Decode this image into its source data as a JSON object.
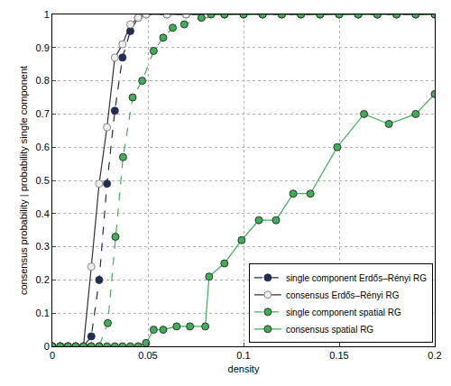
{
  "chart_data": {
    "type": "line",
    "x_label": "density",
    "y_label": "consensus probability | probability single component",
    "xlim": [
      0,
      0.2
    ],
    "xticks": [
      0,
      0.05,
      0.1,
      0.15,
      0.2
    ],
    "ylim": [
      0,
      1
    ],
    "yticks": [
      0,
      0.1,
      0.2,
      0.3,
      0.4,
      0.5,
      0.6,
      0.7,
      0.8,
      0.9,
      1
    ],
    "grid": true,
    "legend": "lower right",
    "series": [
      {
        "name": "single component Erdős–Rényi RG",
        "color": "#1f2d5c",
        "marker": "filled",
        "line_style": "dash",
        "x": [
          0,
          0.0041,
          0.0082,
          0.0122,
          0.0163,
          0.0204,
          0.0245,
          0.0286,
          0.0327,
          0.0367,
          0.0408,
          0.0449,
          0.049,
          0.06,
          0.07,
          0.08,
          0.09,
          0.1,
          0.11,
          0.12,
          0.13,
          0.14,
          0.15,
          0.16,
          0.17,
          0.18,
          0.19,
          0.2
        ],
        "values": [
          0,
          0,
          0,
          0,
          0,
          0.03,
          0.2,
          0.49,
          0.71,
          0.87,
          0.95,
          0.99,
          1,
          1,
          1,
          1,
          1,
          1,
          1,
          1,
          1,
          1,
          1,
          1,
          1,
          1,
          1,
          1
        ]
      },
      {
        "name": "consensus Erdős–Rényi RG",
        "color": "#333333",
        "marker": "open",
        "line_style": "solid",
        "x": [
          0,
          0.0041,
          0.0082,
          0.0122,
          0.0163,
          0.0204,
          0.0245,
          0.0286,
          0.0327,
          0.0367,
          0.0408,
          0.0449,
          0.049,
          0.06,
          0.07,
          0.08,
          0.09,
          0.1,
          0.11,
          0.12,
          0.13,
          0.14,
          0.15,
          0.16,
          0.17,
          0.18,
          0.19,
          0.2
        ],
        "values": [
          0,
          0,
          0,
          0,
          0,
          0.24,
          0.49,
          0.66,
          0.87,
          0.91,
          0.97,
          0.99,
          1,
          1,
          1,
          1,
          1,
          1,
          1,
          1,
          1,
          1,
          1,
          1,
          1,
          1,
          1,
          1
        ]
      },
      {
        "name": "single component spatial RG",
        "color": "#3fae56",
        "marker": "filled",
        "line_style": "dash",
        "x": [
          0,
          0.0041,
          0.0082,
          0.0122,
          0.0163,
          0.0204,
          0.0245,
          0.029,
          0.033,
          0.037,
          0.042,
          0.047,
          0.053,
          0.058,
          0.063,
          0.069,
          0.078,
          0.083,
          0.09,
          0.1,
          0.11,
          0.12,
          0.13,
          0.14,
          0.15,
          0.16,
          0.17,
          0.18,
          0.19,
          0.2
        ],
        "values": [
          0,
          0,
          0,
          0,
          0,
          0,
          0,
          0.07,
          0.33,
          0.57,
          0.75,
          0.8,
          0.89,
          0.93,
          0.96,
          0.97,
          0.99,
          1,
          1,
          1,
          1,
          1,
          1,
          1,
          1,
          1,
          1,
          1,
          1,
          1
        ]
      },
      {
        "name": "consensus spatial RG",
        "color": "#3fae56",
        "marker": "filled",
        "line_style": "solid",
        "x": [
          0,
          0.0041,
          0.0082,
          0.0122,
          0.0163,
          0.0204,
          0.0245,
          0.0286,
          0.0327,
          0.0367,
          0.0408,
          0.0449,
          0.049,
          0.053,
          0.058,
          0.065,
          0.072,
          0.08,
          0.082,
          0.09,
          0.099,
          0.108,
          0.117,
          0.126,
          0.135,
          0.149,
          0.163,
          0.176,
          0.19,
          0.2
        ],
        "values": [
          0,
          0,
          0,
          0,
          0,
          0,
          0,
          0,
          0,
          0,
          0,
          0,
          0.01,
          0.05,
          0.05,
          0.06,
          0.06,
          0.06,
          0.21,
          0.25,
          0.32,
          0.38,
          0.38,
          0.46,
          0.46,
          0.6,
          0.7,
          0.67,
          0.7,
          0.76
        ]
      }
    ]
  }
}
